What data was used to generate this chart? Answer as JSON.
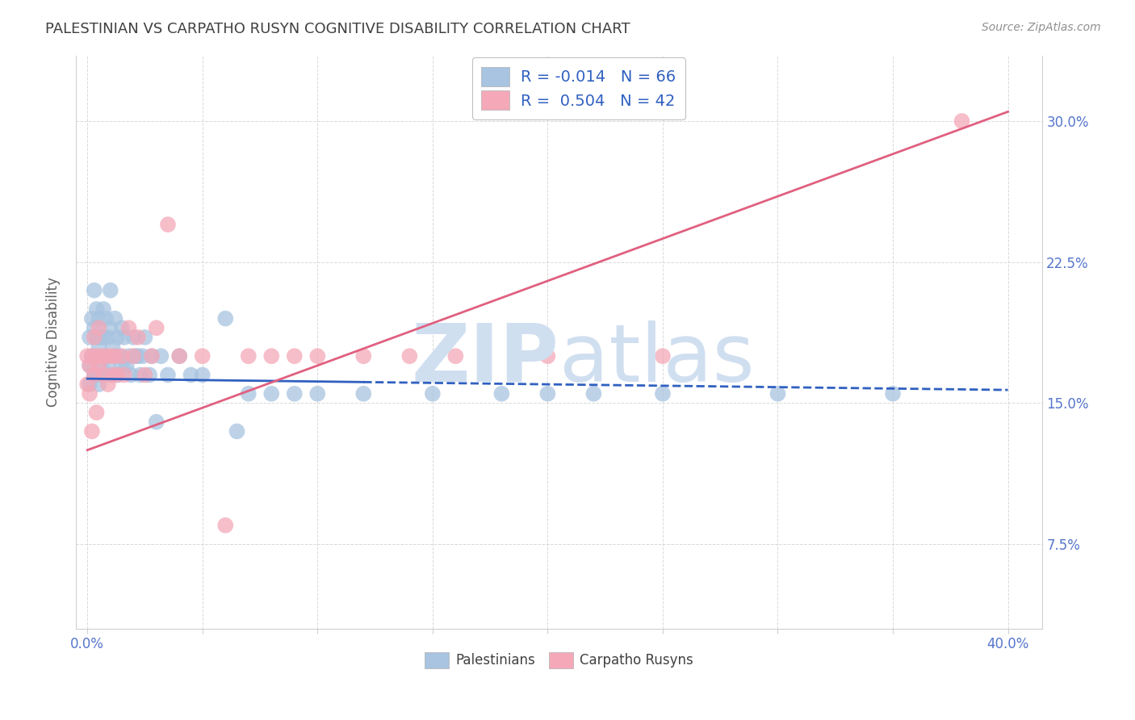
{
  "title": "PALESTINIAN VS CARPATHO RUSYN COGNITIVE DISABILITY CORRELATION CHART",
  "source": "Source: ZipAtlas.com",
  "ylabel": "Cognitive Disability",
  "ytick_labels": [
    "7.5%",
    "15.0%",
    "22.5%",
    "30.0%"
  ],
  "ytick_values": [
    0.075,
    0.15,
    0.225,
    0.3
  ],
  "xtick_values": [
    0.0,
    0.05,
    0.1,
    0.15,
    0.2,
    0.25,
    0.3,
    0.35,
    0.4
  ],
  "xlim": [
    -0.005,
    0.415
  ],
  "ylim": [
    0.03,
    0.335
  ],
  "legend_r_pal": "-0.014",
  "legend_n_pal": "66",
  "legend_r_car": "0.504",
  "legend_n_car": "42",
  "pal_color": "#a8c4e0",
  "car_color": "#f4a8b8",
  "pal_line_color": "#3060c0",
  "car_line_color": "#e06080",
  "watermark_color": "#d0dff0",
  "background_color": "#ffffff",
  "title_color": "#404040",
  "source_color": "#909090",
  "axis_label_color": "#5575cc",
  "grid_color": "#d0d0d0",
  "palestinians_x": [
    0.001,
    0.001,
    0.001,
    0.002,
    0.002,
    0.003,
    0.003,
    0.003,
    0.004,
    0.004,
    0.004,
    0.005,
    0.005,
    0.005,
    0.006,
    0.006,
    0.007,
    0.007,
    0.007,
    0.008,
    0.008,
    0.009,
    0.009,
    0.01,
    0.01,
    0.01,
    0.011,
    0.012,
    0.012,
    0.013,
    0.013,
    0.014,
    0.015,
    0.015,
    0.016,
    0.017,
    0.018,
    0.019,
    0.02,
    0.021,
    0.022,
    0.023,
    0.024,
    0.025,
    0.027,
    0.028,
    0.03,
    0.032,
    0.035,
    0.04,
    0.045,
    0.05,
    0.06,
    0.065,
    0.07,
    0.08,
    0.09,
    0.1,
    0.12,
    0.15,
    0.18,
    0.2,
    0.22,
    0.25,
    0.3,
    0.35
  ],
  "palestinians_y": [
    0.17,
    0.185,
    0.16,
    0.195,
    0.175,
    0.21,
    0.19,
    0.165,
    0.2,
    0.185,
    0.165,
    0.195,
    0.18,
    0.16,
    0.185,
    0.17,
    0.2,
    0.185,
    0.165,
    0.195,
    0.175,
    0.185,
    0.17,
    0.21,
    0.19,
    0.165,
    0.18,
    0.195,
    0.175,
    0.185,
    0.165,
    0.175,
    0.19,
    0.17,
    0.185,
    0.17,
    0.175,
    0.165,
    0.185,
    0.175,
    0.175,
    0.165,
    0.175,
    0.185,
    0.165,
    0.175,
    0.14,
    0.175,
    0.165,
    0.175,
    0.165,
    0.165,
    0.195,
    0.135,
    0.155,
    0.155,
    0.155,
    0.155,
    0.155,
    0.155,
    0.155,
    0.155,
    0.155,
    0.155,
    0.155,
    0.155
  ],
  "carpatho_x": [
    0.0,
    0.0,
    0.001,
    0.001,
    0.002,
    0.002,
    0.003,
    0.003,
    0.004,
    0.004,
    0.005,
    0.005,
    0.006,
    0.007,
    0.008,
    0.009,
    0.01,
    0.011,
    0.012,
    0.013,
    0.015,
    0.016,
    0.018,
    0.02,
    0.022,
    0.025,
    0.028,
    0.03,
    0.035,
    0.04,
    0.05,
    0.06,
    0.07,
    0.08,
    0.09,
    0.1,
    0.12,
    0.14,
    0.16,
    0.2,
    0.25,
    0.38
  ],
  "carpatho_y": [
    0.175,
    0.16,
    0.17,
    0.155,
    0.175,
    0.135,
    0.185,
    0.165,
    0.175,
    0.145,
    0.19,
    0.17,
    0.175,
    0.165,
    0.175,
    0.16,
    0.175,
    0.165,
    0.175,
    0.165,
    0.175,
    0.165,
    0.19,
    0.175,
    0.185,
    0.165,
    0.175,
    0.19,
    0.245,
    0.175,
    0.175,
    0.085,
    0.175,
    0.175,
    0.175,
    0.175,
    0.175,
    0.175,
    0.175,
    0.175,
    0.175,
    0.3
  ],
  "pal_line_y0": 0.163,
  "pal_line_y1": 0.157,
  "car_line_y0": 0.125,
  "car_line_y1": 0.305
}
